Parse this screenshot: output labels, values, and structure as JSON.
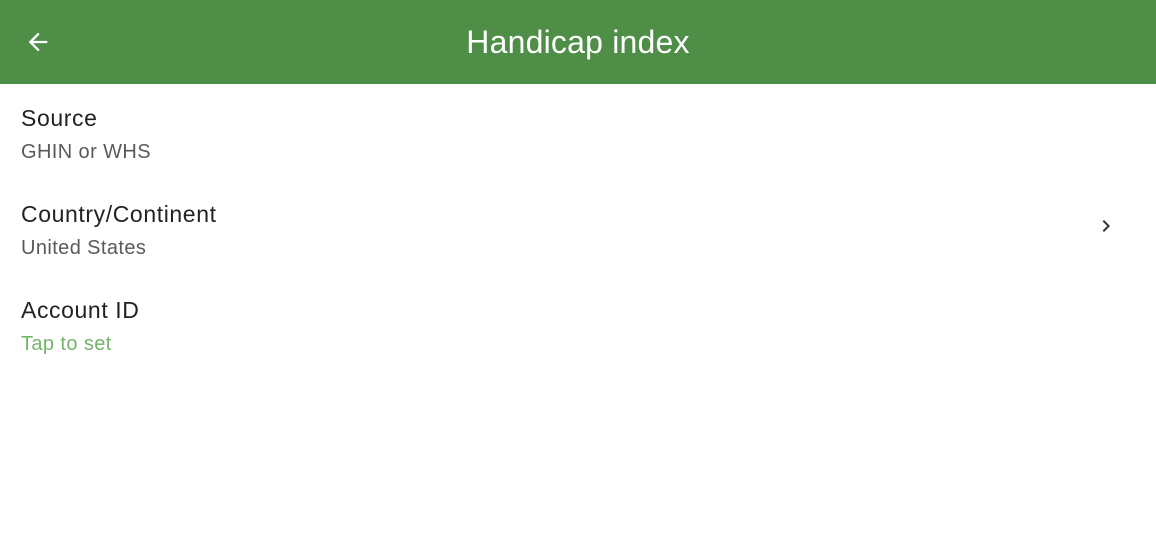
{
  "appbar": {
    "title": "Handicap index",
    "back_icon": "arrow-left-icon",
    "background": "#4e8e46"
  },
  "settings": [
    {
      "title": "Source",
      "subtitle": "GHIN or WHS",
      "has_chevron": false
    },
    {
      "title": "Country/Continent",
      "subtitle": "United States",
      "has_chevron": true,
      "chevron_icon": "chevron-right-icon"
    },
    {
      "title": "Account ID",
      "subtitle": "Tap to set",
      "subtitle_color": "#76b36c",
      "has_chevron": false
    }
  ]
}
